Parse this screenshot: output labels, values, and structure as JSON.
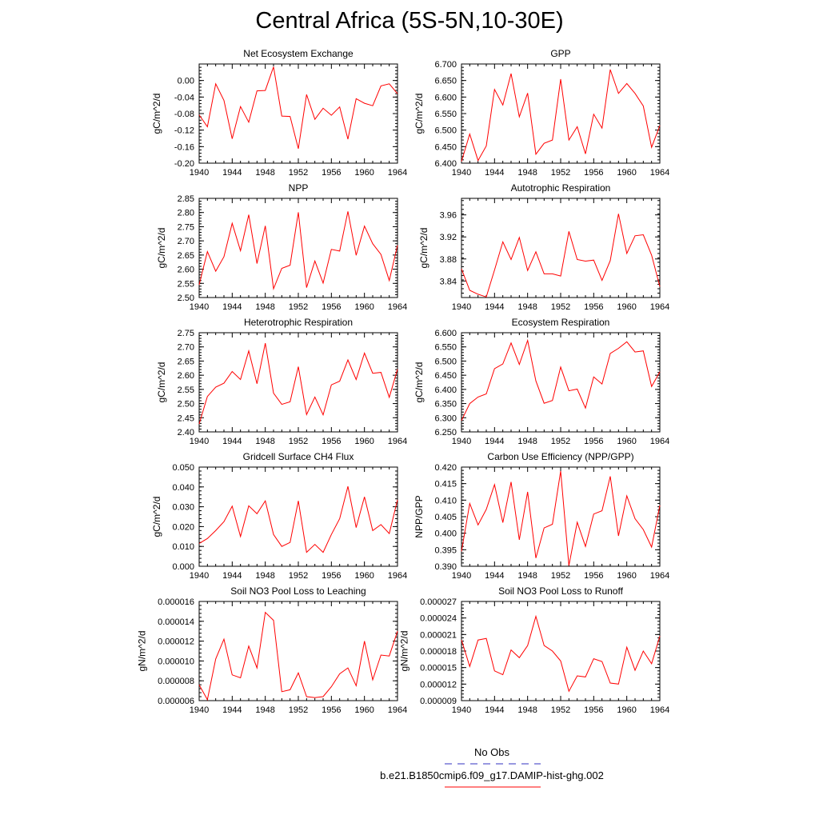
{
  "title": "Central Africa (5S-5N,10-30E)",
  "legend": {
    "obs_label": "No Obs",
    "obs_color": "#3030c0",
    "model_label": "b.e21.B1850cmip6.f09_g17.DAMIP-hist-ghg.002",
    "model_color": "#ff0000"
  },
  "chart_data": [
    {
      "type": "line",
      "title": "Net Ecosystem Exchange",
      "ylabel": "gC/m^2/d",
      "xlim": [
        1940,
        1964
      ],
      "xticks": [
        1940,
        1944,
        1948,
        1952,
        1956,
        1960,
        1964
      ],
      "ylim": [
        -0.2,
        0.04
      ],
      "yticks": [
        "0.00",
        "-0.04",
        "-0.08",
        "-0.12",
        "-0.16",
        "-0.20"
      ],
      "x": [
        1940,
        1941,
        1942,
        1943,
        1944,
        1945,
        1946,
        1947,
        1948,
        1949,
        1950,
        1951,
        1952,
        1953,
        1954,
        1955,
        1956,
        1957,
        1958,
        1959,
        1960,
        1961,
        1962,
        1963,
        1964
      ],
      "values": [
        -0.083,
        -0.112,
        -0.008,
        -0.048,
        -0.141,
        -0.063,
        -0.101,
        -0.025,
        -0.024,
        0.033,
        -0.086,
        -0.087,
        -0.165,
        -0.034,
        -0.094,
        -0.067,
        -0.084,
        -0.064,
        -0.142,
        -0.044,
        -0.055,
        -0.061,
        -0.013,
        -0.008,
        -0.032
      ]
    },
    {
      "type": "line",
      "title": "GPP",
      "ylabel": "gC/m^2/d",
      "xlim": [
        1940,
        1964
      ],
      "xticks": [
        1940,
        1944,
        1948,
        1952,
        1956,
        1960,
        1964
      ],
      "ylim": [
        6.4,
        6.7
      ],
      "yticks": [
        "6.700",
        "6.650",
        "6.600",
        "6.550",
        "6.500",
        "6.450",
        "6.400"
      ],
      "x": [
        1940,
        1941,
        1942,
        1943,
        1944,
        1945,
        1946,
        1947,
        1948,
        1949,
        1950,
        1951,
        1952,
        1953,
        1954,
        1955,
        1956,
        1957,
        1958,
        1959,
        1960,
        1961,
        1962,
        1963,
        1964
      ],
      "values": [
        6.405,
        6.488,
        6.408,
        6.452,
        6.623,
        6.576,
        6.671,
        6.54,
        6.612,
        6.427,
        6.46,
        6.47,
        6.654,
        6.47,
        6.51,
        6.428,
        6.548,
        6.506,
        6.683,
        6.611,
        6.641,
        6.611,
        6.573,
        6.448,
        6.514
      ]
    },
    {
      "type": "line",
      "title": "NPP",
      "ylabel": "gC/m^2/d",
      "xlim": [
        1940,
        1964
      ],
      "xticks": [
        1940,
        1944,
        1948,
        1952,
        1956,
        1960,
        1964
      ],
      "ylim": [
        2.5,
        2.85
      ],
      "yticks": [
        "2.85",
        "2.80",
        "2.75",
        "2.70",
        "2.65",
        "2.60",
        "2.55",
        "2.50"
      ],
      "x": [
        1940,
        1941,
        1942,
        1943,
        1944,
        1945,
        1946,
        1947,
        1948,
        1949,
        1950,
        1951,
        1952,
        1953,
        1954,
        1955,
        1956,
        1957,
        1958,
        1959,
        1960,
        1961,
        1962,
        1963,
        1964
      ],
      "values": [
        2.545,
        2.662,
        2.593,
        2.644,
        2.762,
        2.665,
        2.792,
        2.62,
        2.753,
        2.531,
        2.603,
        2.614,
        2.801,
        2.535,
        2.629,
        2.551,
        2.67,
        2.664,
        2.804,
        2.649,
        2.752,
        2.69,
        2.652,
        2.56,
        2.684
      ]
    },
    {
      "type": "line",
      "title": "Autotrophic Respiration",
      "ylabel": "gC/m^2/d",
      "xlim": [
        1940,
        1964
      ],
      "xticks": [
        1940,
        1944,
        1948,
        1952,
        1956,
        1960,
        1964
      ],
      "ylim": [
        3.81,
        3.99
      ],
      "yticks": [
        "3.96",
        "3.92",
        "3.88",
        "3.84"
      ],
      "x": [
        1940,
        1941,
        1942,
        1943,
        1944,
        1945,
        1946,
        1947,
        1948,
        1949,
        1950,
        1951,
        1952,
        1953,
        1954,
        1955,
        1956,
        1957,
        1958,
        1959,
        1960,
        1961,
        1962,
        1963,
        1964
      ],
      "values": [
        3.862,
        3.823,
        3.816,
        3.811,
        3.86,
        3.911,
        3.879,
        3.919,
        3.859,
        3.893,
        3.853,
        3.853,
        3.849,
        3.93,
        3.879,
        3.876,
        3.878,
        3.841,
        3.877,
        3.962,
        3.89,
        3.922,
        3.924,
        3.887,
        3.83
      ]
    },
    {
      "type": "line",
      "title": "Heterotrophic Respiration",
      "ylabel": "gC/m^2/d",
      "xlim": [
        1940,
        1964
      ],
      "xticks": [
        1940,
        1944,
        1948,
        1952,
        1956,
        1960,
        1964
      ],
      "ylim": [
        2.4,
        2.75
      ],
      "yticks": [
        "2.75",
        "2.70",
        "2.65",
        "2.60",
        "2.55",
        "2.50",
        "2.45",
        "2.40"
      ],
      "x": [
        1940,
        1941,
        1942,
        1943,
        1944,
        1945,
        1946,
        1947,
        1948,
        1949,
        1950,
        1951,
        1952,
        1953,
        1954,
        1955,
        1956,
        1957,
        1958,
        1959,
        1960,
        1961,
        1962,
        1963,
        1964
      ],
      "values": [
        2.428,
        2.525,
        2.558,
        2.572,
        2.613,
        2.585,
        2.686,
        2.57,
        2.713,
        2.537,
        2.497,
        2.506,
        2.63,
        2.461,
        2.523,
        2.46,
        2.566,
        2.579,
        2.654,
        2.585,
        2.678,
        2.607,
        2.61,
        2.522,
        2.621
      ]
    },
    {
      "type": "line",
      "title": "Ecosystem Respiration",
      "ylabel": "gC/m^2/d",
      "xlim": [
        1940,
        1964
      ],
      "xticks": [
        1940,
        1944,
        1948,
        1952,
        1956,
        1960,
        1964
      ],
      "ylim": [
        6.25,
        6.6
      ],
      "yticks": [
        "6.600",
        "6.550",
        "6.500",
        "6.450",
        "6.400",
        "6.350",
        "6.300",
        "6.250"
      ],
      "x": [
        1940,
        1941,
        1942,
        1943,
        1944,
        1945,
        1946,
        1947,
        1948,
        1949,
        1950,
        1951,
        1952,
        1953,
        1954,
        1955,
        1956,
        1957,
        1958,
        1959,
        1960,
        1961,
        1962,
        1963,
        1964
      ],
      "values": [
        6.29,
        6.35,
        6.373,
        6.384,
        6.473,
        6.49,
        6.564,
        6.488,
        6.573,
        6.43,
        6.351,
        6.361,
        6.479,
        6.395,
        6.401,
        6.334,
        6.444,
        6.419,
        6.527,
        6.545,
        6.568,
        6.532,
        6.536,
        6.41,
        6.462
      ]
    },
    {
      "type": "line",
      "title": "Gridcell Surface CH4 Flux",
      "ylabel": "gC/m^2/d",
      "xlim": [
        1940,
        1964
      ],
      "xticks": [
        1940,
        1944,
        1948,
        1952,
        1956,
        1960,
        1964
      ],
      "ylim": [
        0,
        0.05
      ],
      "yticks": [
        "0.050",
        "0.040",
        "0.030",
        "0.020",
        "0.010",
        "0.000"
      ],
      "x": [
        1940,
        1941,
        1942,
        1943,
        1944,
        1945,
        1946,
        1947,
        1948,
        1949,
        1950,
        1951,
        1952,
        1953,
        1954,
        1955,
        1956,
        1957,
        1958,
        1959,
        1960,
        1961,
        1962,
        1963,
        1964
      ],
      "values": [
        0.0115,
        0.014,
        0.018,
        0.0225,
        0.0303,
        0.015,
        0.0305,
        0.0265,
        0.033,
        0.016,
        0.01,
        0.012,
        0.033,
        0.007,
        0.011,
        0.007,
        0.016,
        0.024,
        0.0403,
        0.0195,
        0.035,
        0.018,
        0.021,
        0.0165,
        0.0335
      ]
    },
    {
      "type": "line",
      "title": "Carbon Use Efficiency (NPP/GPP)",
      "ylabel": "NPP/GPP",
      "xlim": [
        1940,
        1964
      ],
      "xticks": [
        1940,
        1944,
        1948,
        1952,
        1956,
        1960,
        1964
      ],
      "ylim": [
        0.39,
        0.42
      ],
      "yticks": [
        "0.420",
        "0.415",
        "0.410",
        "0.405",
        "0.400",
        "0.395",
        "0.390"
      ],
      "x": [
        1940,
        1941,
        1942,
        1943,
        1944,
        1945,
        1946,
        1947,
        1948,
        1949,
        1950,
        1951,
        1952,
        1953,
        1954,
        1955,
        1956,
        1957,
        1958,
        1959,
        1960,
        1961,
        1962,
        1963,
        1964
      ],
      "values": [
        0.3945,
        0.409,
        0.4025,
        0.4072,
        0.4147,
        0.4032,
        0.4155,
        0.398,
        0.4125,
        0.3925,
        0.4016,
        0.4027,
        0.4188,
        0.3902,
        0.4033,
        0.396,
        0.4058,
        0.4068,
        0.4172,
        0.3992,
        0.4113,
        0.4044,
        0.4011,
        0.3958,
        0.4084
      ]
    },
    {
      "type": "line",
      "title": "Soil NO3 Pool Loss to Leaching",
      "ylabel": "gN/m^2/d",
      "xlim": [
        1940,
        1964
      ],
      "xticks": [
        1940,
        1944,
        1948,
        1952,
        1956,
        1960,
        1964
      ],
      "ylim": [
        6e-06,
        1.6e-05
      ],
      "yticks": [
        "0.000016",
        "0.000014",
        "0.000012",
        "0.000010",
        "0.000008",
        "0.000006"
      ],
      "x": [
        1940,
        1941,
        1942,
        1943,
        1944,
        1945,
        1946,
        1947,
        1948,
        1949,
        1950,
        1951,
        1952,
        1953,
        1954,
        1955,
        1956,
        1957,
        1958,
        1959,
        1960,
        1961,
        1962,
        1963,
        1964
      ],
      "values": [
        7.6e-06,
        6.1e-06,
        1.02e-05,
        1.22e-05,
        8.6e-06,
        8.3e-06,
        1.15e-05,
        9.3e-06,
        1.49e-05,
        1.41e-05,
        6.9e-06,
        7.1e-06,
        8.8e-06,
        6.4e-06,
        6.3e-06,
        6.4e-06,
        7.4e-06,
        8.7e-06,
        9.3e-06,
        7.5e-06,
        1.2e-05,
        8.1e-06,
        1.06e-05,
        1.05e-05,
        1.3e-05
      ]
    },
    {
      "type": "line",
      "title": "Soil NO3 Pool Loss to Runoff",
      "ylabel": "gN/m^2/d",
      "xlim": [
        1940,
        1964
      ],
      "xticks": [
        1940,
        1944,
        1948,
        1952,
        1956,
        1960,
        1964
      ],
      "ylim": [
        9e-06,
        2.7e-05
      ],
      "yticks": [
        "0.000027",
        "0.000024",
        "0.000021",
        "0.000018",
        "0.000015",
        "0.000012",
        "0.000009"
      ],
      "x": [
        1940,
        1941,
        1942,
        1943,
        1944,
        1945,
        1946,
        1947,
        1948,
        1949,
        1950,
        1951,
        1952,
        1953,
        1954,
        1955,
        1956,
        1957,
        1958,
        1959,
        1960,
        1961,
        1962,
        1963,
        1964
      ],
      "values": [
        2e-05,
        1.52e-05,
        2e-05,
        2.03e-05,
        1.44e-05,
        1.37e-05,
        1.82e-05,
        1.68e-05,
        1.9e-05,
        2.43e-05,
        1.9e-05,
        1.8e-05,
        1.62e-05,
        1.07e-05,
        1.35e-05,
        1.33e-05,
        1.66e-05,
        1.61e-05,
        1.22e-05,
        1.2e-05,
        1.87e-05,
        1.45e-05,
        1.8e-05,
        1.57e-05,
        2.07e-05
      ]
    }
  ]
}
